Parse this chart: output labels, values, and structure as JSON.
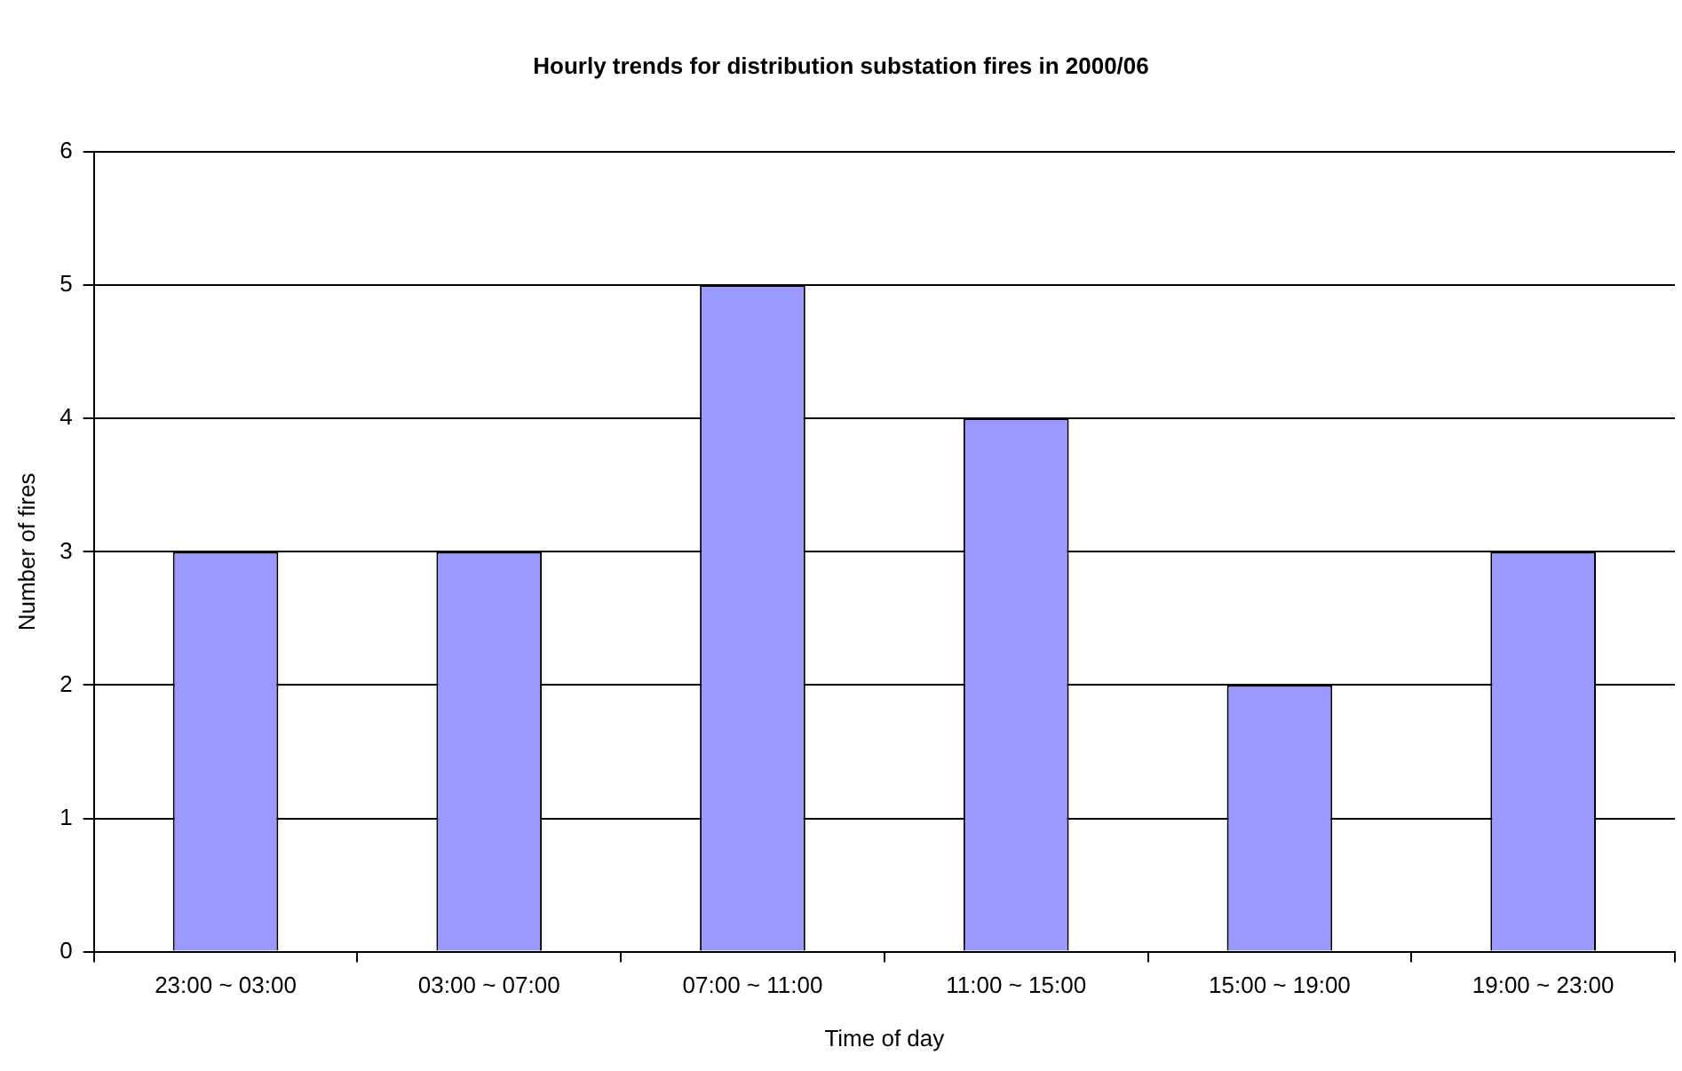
{
  "chart_data": {
    "type": "bar",
    "title": "Hourly trends for distribution substation fires in 2000/06",
    "xlabel": "Time of day",
    "ylabel": "Number of fires",
    "categories": [
      "23:00 ~ 03:00",
      "03:00 ~ 07:00",
      "07:00 ~ 11:00",
      "11:00 ~ 15:00",
      "15:00 ~ 19:00",
      "19:00 ~ 23:00"
    ],
    "values": [
      3,
      3,
      5,
      4,
      2,
      3
    ],
    "color": "#9999ff",
    "ylim": [
      0,
      6
    ],
    "yticks": [
      0,
      1,
      2,
      3,
      4,
      5,
      6
    ],
    "grid": "y",
    "legend": false
  }
}
